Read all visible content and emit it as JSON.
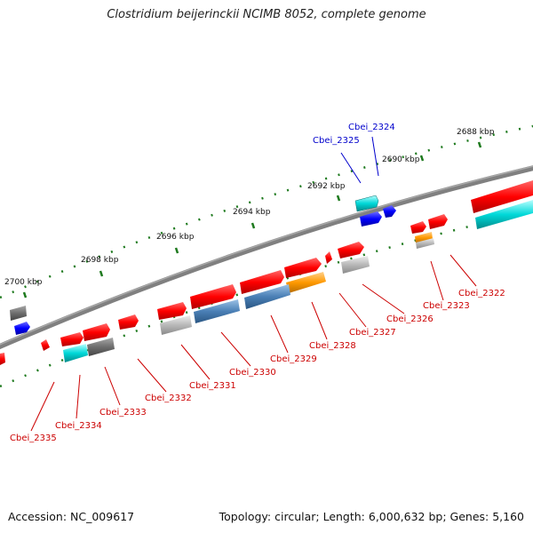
{
  "title": "Clostridium beijerinckii NCIMB 8052, complete genome",
  "footer": {
    "accession": "Accession: NC_009617",
    "stats": "Topology: circular; Length: 6,000,632 bp; Genes: 5,160"
  },
  "ticks": [
    "2688 kbp",
    "2690 kbp",
    "2692 kbp",
    "2694 kbp",
    "2696 kbp",
    "2698 kbp",
    "2700 kbp"
  ],
  "genes_reverse": [
    "Cbei_2335",
    "Cbei_2334",
    "Cbei_2333",
    "Cbei_2332",
    "Cbei_2331",
    "Cbei_2330",
    "Cbei_2329",
    "Cbei_2328",
    "Cbei_2327",
    "Cbei_2326",
    "Cbei_2323",
    "Cbei_2322"
  ],
  "genes_forward": [
    "Cbei_2325",
    "Cbei_2324"
  ],
  "colors": {
    "backbone": "#808080",
    "tick": "#1f7a1f",
    "cds": "#ff0000",
    "highlight": "#00d8d8",
    "steelblue": "#4a7fb5",
    "orange": "#ff9900",
    "grey": "#b8b8b8",
    "darkgrey": "#6e6e6e",
    "blue": "#0000ff",
    "reverse_label": "#cc0000",
    "forward_label": "#0000cc"
  }
}
